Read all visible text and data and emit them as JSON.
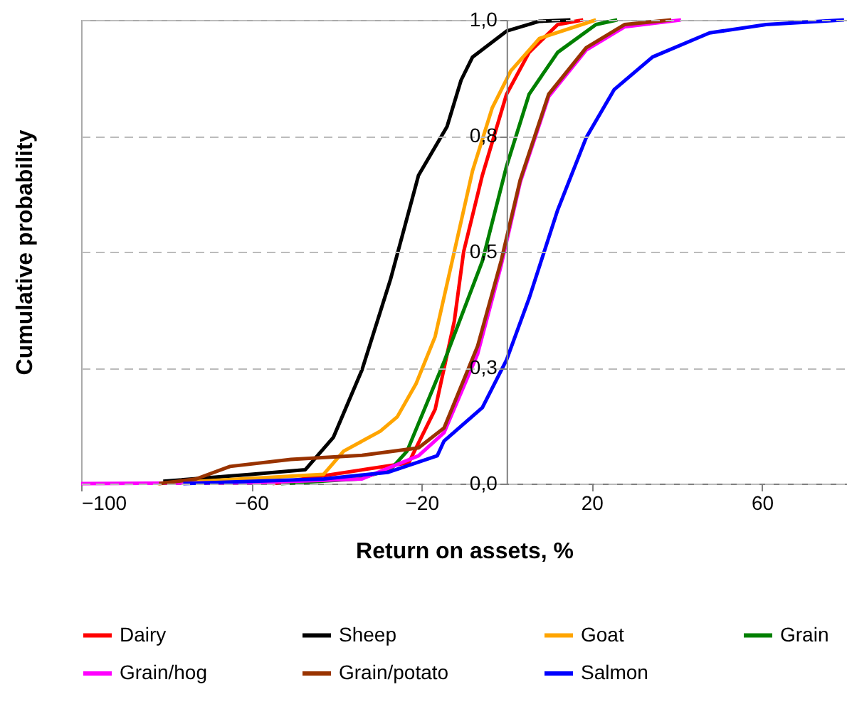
{
  "chart_data": {
    "type": "line",
    "xlabel": "Return on assets, %",
    "ylabel": "Cumulative probability",
    "xlim": [
      -100,
      80
    ],
    "xticks": [
      -100,
      -60,
      -20,
      20,
      60
    ],
    "ylim": [
      0,
      1
    ],
    "yticks": [
      {
        "value": 0,
        "label": "0,0"
      },
      {
        "value": 0.25,
        "label": "0,3"
      },
      {
        "value": 0.5,
        "label": "0,5"
      },
      {
        "value": 0.75,
        "label": "0,8"
      },
      {
        "value": 1,
        "label": "1,0"
      }
    ],
    "grid": "y",
    "legend": "bottom",
    "marker": "none",
    "line_style": "solid",
    "series": [
      {
        "name": "Dairy",
        "color": "#ff0000",
        "x": [
          -55,
          -23,
          -16.8,
          -12.3,
          -10.1,
          -5.7,
          0,
          5.3,
          12,
          18
        ],
        "values": [
          0,
          0.045,
          0.16,
          0.35,
          0.5,
          0.665,
          0.84,
          0.93,
          0.99,
          1
        ]
      },
      {
        "name": "Sheep",
        "color": "#000000",
        "x": [
          -80.7,
          -60,
          -47.3,
          -40.7,
          -34,
          -27.3,
          -20.7,
          -14,
          -10.7,
          -8,
          0,
          7.7,
          15
        ],
        "values": [
          0.005,
          0.02,
          0.03,
          0.1,
          0.245,
          0.44,
          0.665,
          0.77,
          0.87,
          0.92,
          0.976,
          0.997,
          1
        ]
      },
      {
        "name": "Goat",
        "color": "#ffa500",
        "x": [
          -82,
          -43,
          -38.3,
          -29.7,
          -25.7,
          -21.3,
          -16.8,
          -12.3,
          -8,
          -3.4,
          1,
          7.7,
          21
        ],
        "values": [
          0,
          0.02,
          0.07,
          0.113,
          0.144,
          0.215,
          0.317,
          0.5,
          0.675,
          0.81,
          0.89,
          0.96,
          1
        ]
      },
      {
        "name": "Grain",
        "color": "#008000",
        "x": [
          -53,
          -35,
          -27.3,
          -23.4,
          -14.6,
          -5.7,
          0,
          5.3,
          12,
          21,
          26
        ],
        "values": [
          0,
          0.01,
          0.03,
          0.07,
          0.265,
          0.48,
          0.685,
          0.84,
          0.93,
          0.99,
          1
        ]
      },
      {
        "name": "Grain/hog",
        "color": "#ff00ff",
        "x": [
          -100,
          -60,
          -34,
          -20.7,
          -14.7,
          -6.8,
          -1.3,
          3.2,
          9.9,
          18.7,
          27.7,
          41
        ],
        "values": [
          0,
          0.002,
          0.01,
          0.06,
          0.11,
          0.28,
          0.47,
          0.65,
          0.835,
          0.935,
          0.985,
          1
        ]
      },
      {
        "name": "Grain/potato",
        "color": "#993300",
        "x": [
          -81.7,
          -73,
          -65,
          -50.7,
          -34,
          -20.7,
          -14.7,
          -6.8,
          -1.3,
          3.2,
          9.9,
          18.7,
          27.7,
          38.7
        ],
        "values": [
          0,
          0.01,
          0.037,
          0.052,
          0.061,
          0.077,
          0.12,
          0.297,
          0.48,
          0.655,
          0.84,
          0.94,
          0.99,
          1
        ]
      },
      {
        "name": "Salmon",
        "color": "#0000ff",
        "x": [
          -76,
          -43,
          -28,
          -16.3,
          -14.7,
          -5.7,
          0,
          5.3,
          12,
          18.7,
          25.3,
          34.3,
          47.7,
          61,
          79.3
        ],
        "values": [
          0,
          0.01,
          0.024,
          0.06,
          0.092,
          0.164,
          0.267,
          0.4,
          0.59,
          0.746,
          0.85,
          0.92,
          0.972,
          0.99,
          1
        ]
      }
    ]
  }
}
